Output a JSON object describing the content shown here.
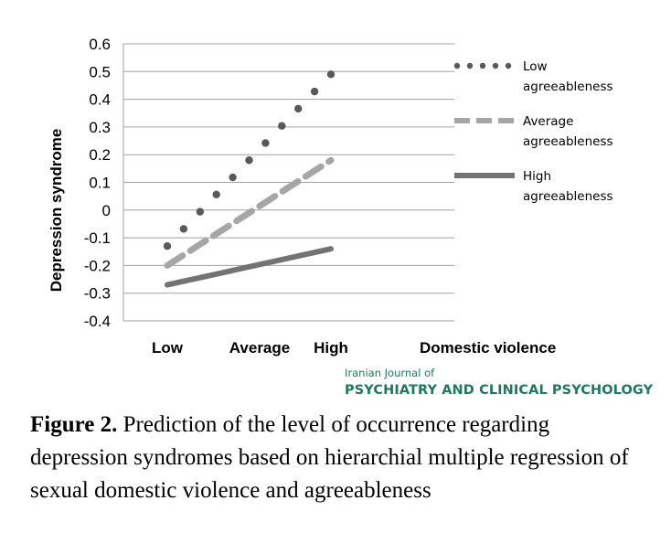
{
  "chart_data": {
    "type": "line",
    "ylabel": "Depression syndrome",
    "categories": [
      "Low",
      "Average",
      "High"
    ],
    "x_axis_title": "Domestic violence",
    "ylim": [
      -0.4,
      0.6
    ],
    "yticks": [
      "0.6",
      "0.5",
      "0.4",
      "0.3",
      "0.2",
      "0.1",
      "0",
      "-0.1",
      "-0.2",
      "-0.3",
      "-0.4"
    ],
    "grid": true,
    "legend_position": "right",
    "series": [
      {
        "name": "Low agreeableness",
        "name_lines": [
          "Low",
          "agreeableness"
        ],
        "start": -0.13,
        "end": 0.49,
        "style": "dotted",
        "color": "#595959"
      },
      {
        "name": "Average agreeableness",
        "name_lines": [
          "Average",
          "agreeableness"
        ],
        "start": -0.2,
        "end": 0.18,
        "style": "dashed",
        "color": "#a6a6a6"
      },
      {
        "name": "High agreeableness",
        "name_lines": [
          "High",
          "agreeableness"
        ],
        "start": -0.27,
        "end": -0.14,
        "style": "solid",
        "color": "#737373"
      }
    ]
  },
  "journal": {
    "line1": "Iranian Journal of",
    "line2": "PSYCHIATRY AND CLINICAL PSYCHOLOGY"
  },
  "caption": {
    "label": "Figure 2.",
    "text": " Prediction of the level of occurrence regarding depression syndromes based on hierarchial multiple regression of sexual domestic violence and agreeableness"
  }
}
